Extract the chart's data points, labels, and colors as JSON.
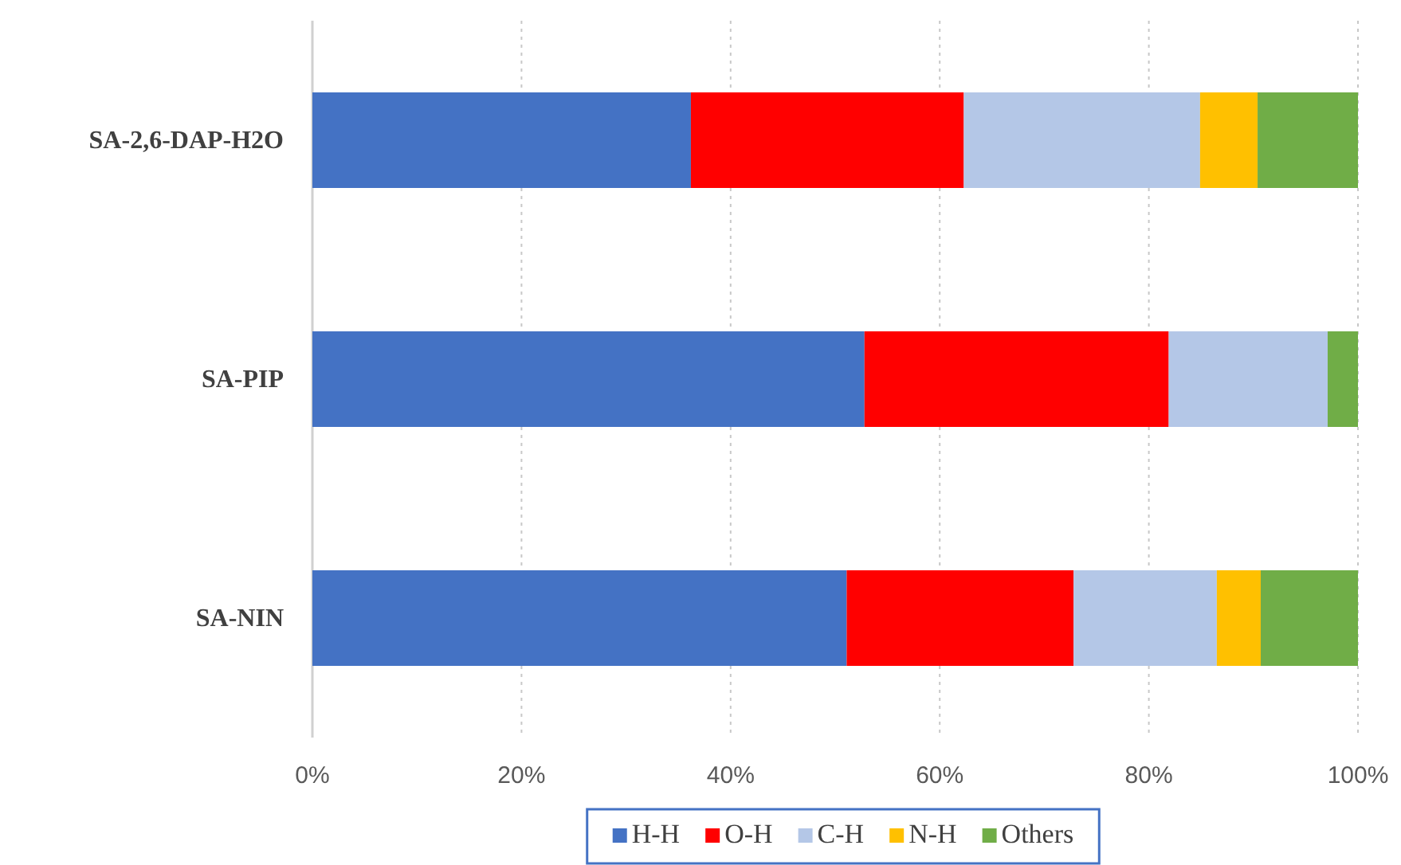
{
  "chart_data": {
    "type": "bar",
    "orientation": "horizontal",
    "stacked": true,
    "categories": [
      "SA-2,6-DAP-H2O",
      "SA-PIP",
      "SA-NIN"
    ],
    "series": [
      {
        "name": "H-H",
        "color": "#4472c4",
        "values": [
          36.2,
          52.8,
          51.1
        ]
      },
      {
        "name": "O-H",
        "color": "#ff0000",
        "values": [
          26.1,
          29.1,
          21.7
        ]
      },
      {
        "name": "C-H",
        "color": "#b4c7e7",
        "values": [
          22.6,
          15.2,
          13.7
        ]
      },
      {
        "name": "N-H",
        "color": "#ffc000",
        "values": [
          5.5,
          0,
          4.2
        ]
      },
      {
        "name": "Others",
        "color": "#70ad47",
        "values": [
          9.6,
          2.9,
          9.3
        ]
      }
    ],
    "xlim": [
      0,
      100
    ],
    "xticks": [
      {
        "value": 0,
        "label": "0%"
      },
      {
        "value": 20,
        "label": "20%"
      },
      {
        "value": 40,
        "label": "40%"
      },
      {
        "value": 60,
        "label": "60%"
      },
      {
        "value": 80,
        "label": "80%"
      },
      {
        "value": 100,
        "label": "100%"
      }
    ],
    "grid": "x",
    "legend": "bottom"
  }
}
